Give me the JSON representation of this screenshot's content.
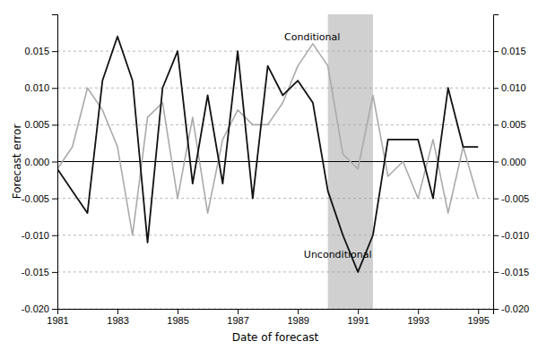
{
  "chart_data": {
    "type": "line",
    "xlabel": "Date of forecast",
    "ylabel": "Forecast error",
    "xlim": [
      1981.0,
      1995.5
    ],
    "xticks": [
      1981,
      1983,
      1985,
      1987,
      1989,
      1991,
      1993,
      1995
    ],
    "ylim": [
      -0.02,
      0.02
    ],
    "yticks": [
      {
        "value": -0.02,
        "label": "-0.020"
      },
      {
        "value": -0.015,
        "label": "-0.015"
      },
      {
        "value": -0.01,
        "label": "-0.010"
      },
      {
        "value": -0.005,
        "label": "-0.005"
      },
      {
        "value": 0.0,
        "label": "0.000"
      },
      {
        "value": 0.005,
        "label": "0.005"
      },
      {
        "value": 0.01,
        "label": "0.010"
      },
      {
        "value": 0.015,
        "label": "0.015"
      }
    ],
    "grid": true,
    "x": [
      1981.0,
      1981.5,
      1982.0,
      1982.5,
      1983.0,
      1983.5,
      1984.0,
      1984.5,
      1985.0,
      1985.5,
      1986.0,
      1986.5,
      1987.0,
      1987.5,
      1988.0,
      1988.5,
      1989.0,
      1989.5,
      1990.0,
      1990.5,
      1991.0,
      1991.5,
      1992.0,
      1992.5,
      1993.0,
      1993.5,
      1994.0,
      1994.5,
      1995.0
    ],
    "series": [
      {
        "color": "#aaaaaa",
        "values": [
          -0.001,
          0.002,
          0.01,
          0.007,
          0.002,
          -0.01,
          0.006,
          0.008,
          -0.005,
          0.006,
          -0.007,
          0.003,
          0.007,
          0.005,
          0.005,
          0.008,
          0.013,
          0.016,
          0.013,
          0.001,
          -0.001,
          0.009,
          -0.002,
          0.0,
          -0.005,
          0.003,
          -0.007,
          0.002,
          -0.005
        ]
      },
      {
        "color": "#111111",
        "values": [
          -0.001,
          -0.004,
          -0.007,
          0.011,
          0.017,
          0.011,
          -0.011,
          0.01,
          0.015,
          -0.003,
          0.009,
          -0.003,
          0.015,
          -0.005,
          0.013,
          0.009,
          0.011,
          0.008,
          -0.004,
          -0.01,
          -0.015,
          -0.01,
          0.003,
          0.003,
          0.003,
          -0.005,
          0.01,
          0.002,
          0.002
        ]
      }
    ],
    "shaded_region": {
      "start": 1990.0,
      "end": 1991.5,
      "color": "#d0d0d0"
    },
    "annotations": [
      {
        "text": "Conditional",
        "x": 1988.55,
        "y": 0.0162
      },
      {
        "text": "Unconditional",
        "x": 1989.2,
        "y": -0.0118
      }
    ]
  }
}
